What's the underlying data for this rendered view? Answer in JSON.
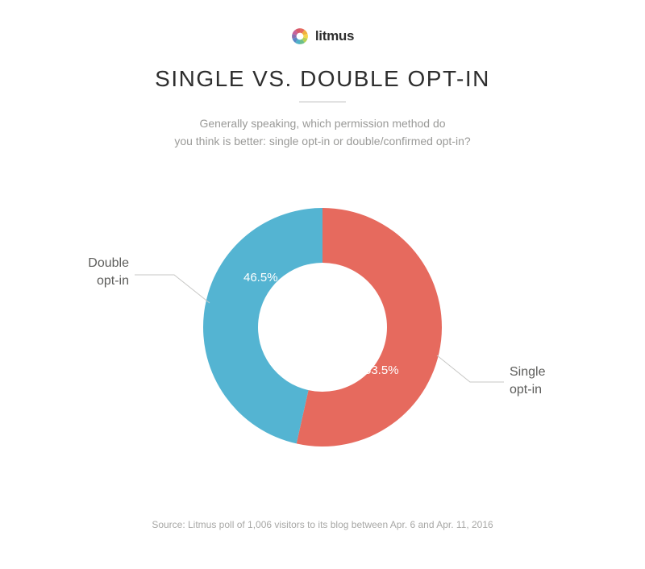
{
  "logo": {
    "text": "litmus"
  },
  "title": "SINGLE VS. DOUBLE OPT-IN",
  "subtitle_line1": "Generally speaking, which permission method do",
  "subtitle_line2": "you think is better: single opt-in or double/confirmed opt-in?",
  "chart": {
    "type": "donut",
    "outer_radius": 148,
    "inner_radius": 80,
    "background_color": "#ffffff",
    "slices": [
      {
        "key": "single",
        "label_line1": "Single",
        "label_line2": "opt-in",
        "value": 53.5,
        "pct_text": "53.5%",
        "color": "#e66a5e"
      },
      {
        "key": "double",
        "label_line1": "Double",
        "label_line2": "opt-in",
        "value": 46.5,
        "pct_text": "46.5%",
        "color": "#54b4d2"
      }
    ],
    "label_color": "#5d5d5b",
    "label_fontsize": 16,
    "pct_color": "#ffffff",
    "pct_fontsize": 15,
    "leader_color": "#c7c7c5"
  },
  "source": "Source: Litmus poll of 1,006 visitors to its blog between Apr. 6 and Apr. 11, 2016",
  "logo_colors": [
    "#e66a5e",
    "#f1af3e",
    "#f4d54a",
    "#b7d154",
    "#6cbf8b",
    "#4fb1c8",
    "#5a87c6",
    "#8a6fb0",
    "#c6619a",
    "#d85a6c"
  ]
}
